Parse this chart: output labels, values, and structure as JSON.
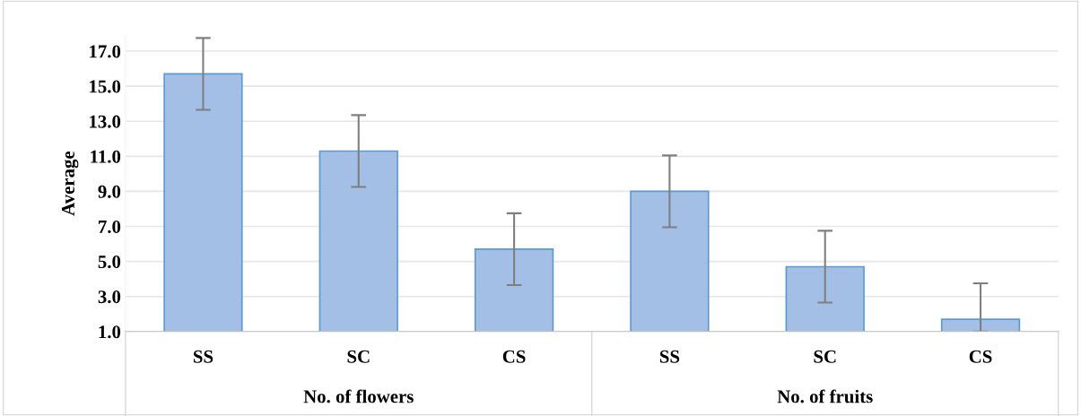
{
  "chart_data": {
    "type": "bar",
    "ylabel": "Average",
    "categories": [
      "SS",
      "SC",
      "CS",
      "SS",
      "SC",
      "CS"
    ],
    "series": [
      {
        "color": "#a3bfe6",
        "values": [
          15.7,
          11.3,
          5.7,
          9.0,
          4.7,
          1.7
        ],
        "errors": [
          2.05,
          2.05,
          2.05,
          2.05,
          2.05,
          [
            1.0,
            3.75
          ]
        ]
      }
    ],
    "annotations": [
      "No. of flowers",
      "No. of fruits"
    ],
    "ylim": [
      1.0,
      17.9
    ],
    "yticks": [
      {
        "value": 1,
        "label": "1.0"
      },
      {
        "value": 3,
        "label": "3.0"
      },
      {
        "value": 5,
        "label": "5.0"
      },
      {
        "value": 7,
        "label": "7.0"
      },
      {
        "value": 9,
        "label": "9.0"
      },
      {
        "value": 11,
        "label": "11.0"
      },
      {
        "value": 13,
        "label": "13.0"
      },
      {
        "value": 15,
        "label": "15.0"
      },
      {
        "value": 17,
        "label": "17.0"
      }
    ],
    "grid": "y",
    "legend": false
  }
}
